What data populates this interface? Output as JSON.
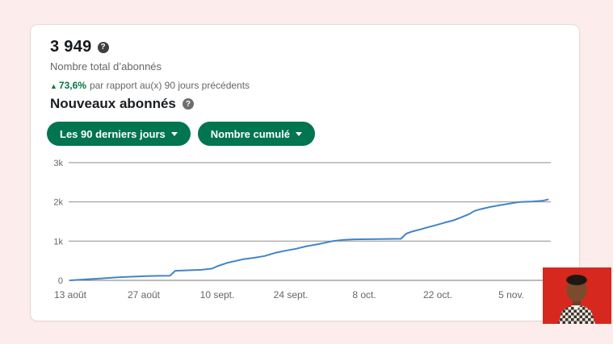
{
  "header": {
    "total_followers": "3 949",
    "total_label": "Nombre total d’abonnés",
    "change": {
      "arrow": "▲",
      "value": "73,6%",
      "text": "par rapport au(x) 90 jours précédents",
      "color": "#057642"
    }
  },
  "section": {
    "title": "Nouveaux abonnés"
  },
  "filters": {
    "time_range": "Les 90 derniers jours",
    "metric": "Nombre cumulé"
  },
  "icons": {
    "help": "?"
  },
  "colors": {
    "page_background": "#fceceb",
    "card_background": "#ffffff",
    "accent_green": "#01754f",
    "success_green": "#057642",
    "line_blue": "#4384c8",
    "gridline_gray": "#8f8f8f",
    "text_gray": "#666666",
    "webcam_red": "#d6281e"
  },
  "chart_data": {
    "type": "line",
    "title": "Nouveaux abonnés",
    "series_name": "Nombre cumulé d'abonnés",
    "xlabel": "",
    "ylabel": "",
    "ylim": [
      0,
      3000
    ],
    "x_range_days": [
      0,
      91
    ],
    "grid": "horizontal",
    "legend": "none",
    "line_color": "#4384c8",
    "y_ticks": [
      {
        "value": 0,
        "label": "0"
      },
      {
        "value": 1000,
        "label": "1k"
      },
      {
        "value": 2000,
        "label": "2k"
      },
      {
        "value": 3000,
        "label": "3k"
      }
    ],
    "x_ticks": [
      {
        "day": 0,
        "label": "13 août"
      },
      {
        "day": 14,
        "label": "27 août"
      },
      {
        "day": 28,
        "label": "10 sept."
      },
      {
        "day": 42,
        "label": "24 sept."
      },
      {
        "day": 56,
        "label": "8 oct."
      },
      {
        "day": 70,
        "label": "22 oct."
      },
      {
        "day": 84,
        "label": "5 nov."
      }
    ],
    "points": [
      [
        0,
        0
      ],
      [
        3,
        25
      ],
      [
        6,
        50
      ],
      [
        9,
        75
      ],
      [
        12,
        95
      ],
      [
        15,
        110
      ],
      [
        17,
        115
      ],
      [
        19,
        120
      ],
      [
        20,
        245
      ],
      [
        23,
        258
      ],
      [
        25,
        270
      ],
      [
        27,
        300
      ],
      [
        28,
        360
      ],
      [
        30,
        450
      ],
      [
        33,
        540
      ],
      [
        35,
        575
      ],
      [
        37,
        620
      ],
      [
        39,
        700
      ],
      [
        41,
        755
      ],
      [
        43,
        805
      ],
      [
        45,
        870
      ],
      [
        47,
        915
      ],
      [
        50,
        1000
      ],
      [
        52,
        1030
      ],
      [
        54,
        1045
      ],
      [
        57,
        1050
      ],
      [
        60,
        1055
      ],
      [
        63,
        1060
      ],
      [
        64,
        1190
      ],
      [
        65,
        1240
      ],
      [
        67,
        1310
      ],
      [
        68,
        1350
      ],
      [
        70,
        1420
      ],
      [
        71,
        1460
      ],
      [
        73,
        1530
      ],
      [
        74,
        1580
      ],
      [
        76,
        1690
      ],
      [
        77,
        1770
      ],
      [
        78,
        1810
      ],
      [
        80,
        1870
      ],
      [
        82,
        1920
      ],
      [
        83,
        1940
      ],
      [
        85,
        1985
      ],
      [
        86,
        2000
      ],
      [
        88,
        2010
      ],
      [
        90,
        2030
      ],
      [
        91,
        2060
      ]
    ]
  },
  "webcam_overlay": {
    "background": "#d6281e"
  }
}
